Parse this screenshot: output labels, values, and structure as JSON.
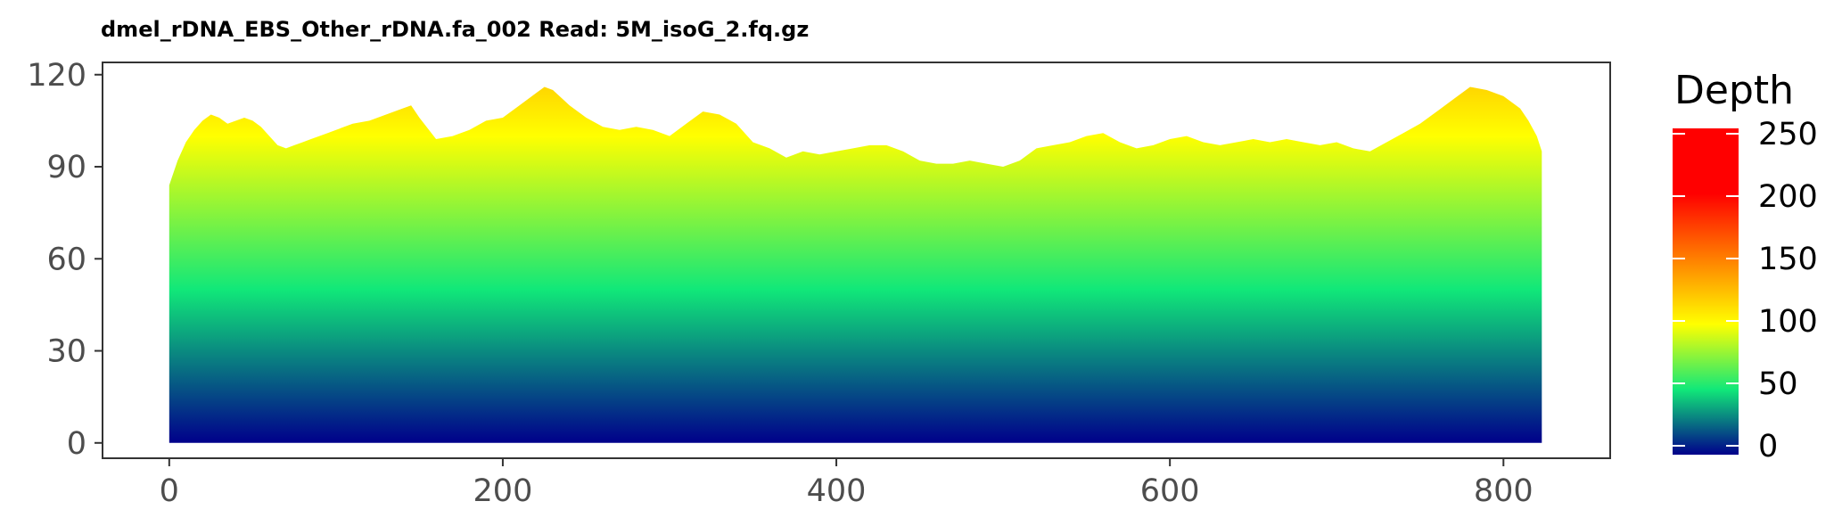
{
  "chart_data": {
    "type": "area",
    "title": "dmel_rDNA_EBS_Other_rDNA.fa_002   Read: 5M_isoG_2.fq.gz",
    "xlabel": "",
    "ylabel": "",
    "xlim": [
      -40,
      864
    ],
    "ylim": [
      -5,
      124
    ],
    "x_ticks": [
      0,
      200,
      400,
      600,
      800
    ],
    "y_ticks": [
      0,
      30,
      60,
      90,
      120
    ],
    "x_tick_labels": [
      "0",
      "200",
      "400",
      "600",
      "800"
    ],
    "y_tick_labels": [
      "0",
      "30",
      "60",
      "90",
      "120"
    ],
    "grid": false,
    "series": [
      {
        "x": [
          0,
          5,
          10,
          15,
          20,
          25,
          30,
          35,
          40,
          45,
          50,
          55,
          60,
          65,
          70,
          75,
          80,
          85,
          90,
          95,
          100,
          110,
          120,
          130,
          140,
          145,
          150,
          160,
          170,
          180,
          190,
          200,
          210,
          220,
          225,
          230,
          240,
          250,
          260,
          270,
          280,
          290,
          300,
          310,
          320,
          330,
          340,
          350,
          360,
          370,
          380,
          390,
          400,
          410,
          420,
          430,
          440,
          450,
          460,
          470,
          480,
          490,
          500,
          510,
          520,
          530,
          540,
          550,
          560,
          570,
          580,
          590,
          600,
          610,
          620,
          630,
          640,
          650,
          660,
          670,
          680,
          690,
          700,
          710,
          720,
          730,
          740,
          750,
          760,
          770,
          780,
          790,
          800,
          810,
          815,
          820,
          823
        ],
        "y": [
          84,
          92,
          98,
          102,
          105,
          107,
          106,
          104,
          105,
          106,
          105,
          103,
          100,
          97,
          96,
          97,
          98,
          99,
          100,
          101,
          102,
          104,
          105,
          107,
          109,
          110,
          106,
          99,
          100,
          102,
          105,
          106,
          110,
          114,
          116,
          115,
          110,
          106,
          103,
          102,
          103,
          102,
          100,
          104,
          108,
          107,
          104,
          98,
          96,
          93,
          95,
          94,
          95,
          96,
          97,
          97,
          95,
          92,
          91,
          91,
          92,
          91,
          90,
          92,
          96,
          97,
          98,
          100,
          101,
          98,
          96,
          97,
          99,
          100,
          98,
          97,
          98,
          99,
          98,
          99,
          98,
          97,
          98,
          96,
          95,
          98,
          101,
          104,
          108,
          112,
          116,
          115,
          113,
          109,
          105,
          100,
          95
        ]
      }
    ],
    "legend": {
      "title": "Depth",
      "type": "colorbar",
      "position": "right",
      "range": [
        0,
        250
      ],
      "ticks": [
        0,
        50,
        100,
        150,
        200,
        250
      ],
      "tick_labels": [
        "0",
        "50",
        "100",
        "150",
        "200",
        "250"
      ],
      "colors": [
        {
          "value": 0,
          "color": "#00008b"
        },
        {
          "value": 50,
          "color": "#11e879"
        },
        {
          "value": 100,
          "color": "#ffff00"
        },
        {
          "value": 200,
          "color": "#ff0000"
        },
        {
          "value": 250,
          "color": "#ff0000"
        }
      ]
    }
  }
}
